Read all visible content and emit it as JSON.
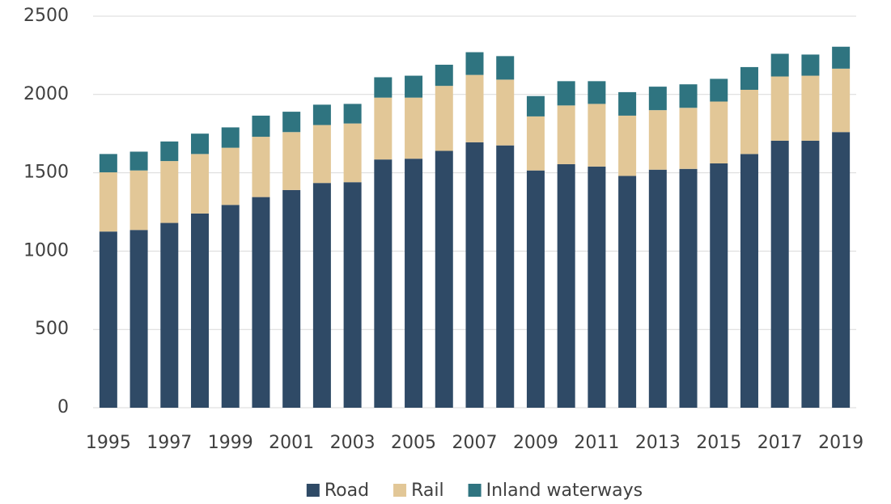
{
  "chart_data": {
    "type": "stacked_bar",
    "categories": [
      "1995",
      null,
      "1997",
      null,
      "1999",
      null,
      "2001",
      null,
      "2003",
      null,
      "2005",
      null,
      "2007",
      null,
      "2009",
      null,
      "2011",
      null,
      "2013",
      null,
      "2015",
      null,
      "2017",
      null,
      "2019"
    ],
    "series": [
      {
        "name": "Road",
        "color": "#2f4a66",
        "values": [
          1125,
          1135,
          1180,
          1240,
          1295,
          1345,
          1390,
          1435,
          1440,
          1585,
          1590,
          1640,
          1695,
          1675,
          1515,
          1555,
          1540,
          1480,
          1520,
          1525,
          1560,
          1620,
          1705,
          1705,
          1760
        ]
      },
      {
        "name": "Rail",
        "color": "#e2c797",
        "values": [
          378,
          380,
          395,
          380,
          365,
          385,
          370,
          370,
          375,
          395,
          390,
          415,
          430,
          420,
          345,
          375,
          400,
          385,
          380,
          390,
          395,
          410,
          410,
          415,
          405
        ]
      },
      {
        "name": "Inland waterways",
        "color": "#2f7480",
        "values": [
          117,
          120,
          125,
          130,
          130,
          135,
          130,
          130,
          125,
          130,
          140,
          135,
          145,
          150,
          130,
          155,
          145,
          150,
          150,
          150,
          145,
          145,
          145,
          135,
          140
        ]
      }
    ],
    "ylim": [
      0,
      2500
    ],
    "yticks": [
      0,
      500,
      1000,
      1500,
      2000,
      2500
    ],
    "grid": true,
    "legend": "bottom"
  }
}
